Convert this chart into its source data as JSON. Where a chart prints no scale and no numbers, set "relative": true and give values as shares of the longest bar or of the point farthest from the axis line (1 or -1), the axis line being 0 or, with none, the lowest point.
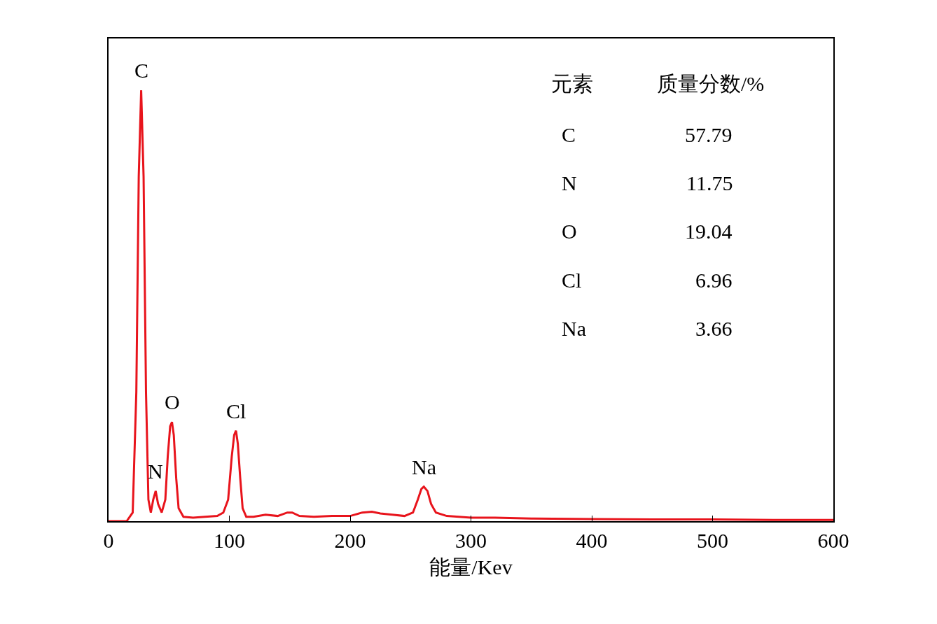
{
  "chart_data": {
    "type": "line",
    "relative": true,
    "xlabel": "能量/Kev",
    "xlim": [
      0,
      600
    ],
    "xticks": [
      0,
      100,
      200,
      300,
      400,
      500,
      600
    ],
    "grid": false,
    "marker": "none",
    "line_style": "solid",
    "series": [
      {
        "color": "#e8141c",
        "x": [
          0,
          15,
          20,
          23,
          25,
          27,
          29,
          31,
          33,
          35,
          37,
          39,
          41,
          44,
          47,
          49,
          51,
          52.5,
          54,
          56,
          58,
          62,
          70,
          80,
          90,
          95,
          99,
          102,
          104,
          105.5,
          107,
          109,
          111,
          114,
          120,
          130,
          140,
          148,
          152,
          158,
          170,
          185,
          200,
          210,
          218,
          225,
          235,
          245,
          252,
          256,
          259,
          261,
          264,
          267,
          271,
          280,
          290,
          300,
          320,
          350,
          400,
          450,
          500,
          550,
          600
        ],
        "values": [
          0,
          0,
          0.02,
          0.3,
          0.8,
          1,
          0.8,
          0.3,
          0.05,
          0.02,
          0.05,
          0.07,
          0.04,
          0.02,
          0.05,
          0.15,
          0.22,
          0.23,
          0.2,
          0.1,
          0.03,
          0.01,
          0.008,
          0.01,
          0.012,
          0.02,
          0.05,
          0.15,
          0.2,
          0.21,
          0.18,
          0.1,
          0.03,
          0.01,
          0.01,
          0.015,
          0.012,
          0.02,
          0.02,
          0.012,
          0.01,
          0.012,
          0.012,
          0.02,
          0.022,
          0.018,
          0.015,
          0.012,
          0.02,
          0.05,
          0.075,
          0.08,
          0.07,
          0.04,
          0.02,
          0.012,
          0.01,
          0.008,
          0.008,
          0.006,
          0.005,
          0.004,
          0.004,
          0.003,
          0.003
        ]
      }
    ],
    "annotations": [
      {
        "text": "C",
        "x": 27,
        "y": 1
      },
      {
        "text": "N",
        "x": 39,
        "y": 0.07
      },
      {
        "text": "O",
        "x": 52.5,
        "y": 0.23
      },
      {
        "text": "Cl",
        "x": 105.5,
        "y": 0.21
      },
      {
        "text": "Na",
        "x": 261,
        "y": 0.08
      },
      "元素",
      "质量分数/%",
      "C",
      "57.79",
      "N",
      "11.75",
      "O",
      "19.04",
      "Cl",
      "6.96",
      "Na",
      "3.66"
    ]
  }
}
